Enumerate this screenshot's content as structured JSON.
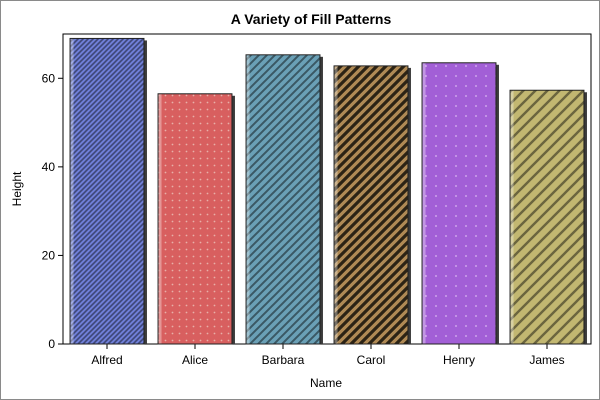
{
  "chart_data": {
    "type": "bar",
    "title": "A Variety of Fill Patterns",
    "xlabel": "Name",
    "ylabel": "Height",
    "categories": [
      "Alfred",
      "Alice",
      "Barbara",
      "Carol",
      "Henry",
      "James"
    ],
    "values": [
      69.0,
      56.5,
      65.3,
      62.8,
      63.5,
      57.3
    ],
    "ylim": [
      0,
      70
    ],
    "yticks": [
      "0",
      "20",
      "40",
      "60"
    ],
    "grid": false,
    "legend": "none",
    "bars": [
      {
        "color": "#6f7fd8",
        "pattern": "diagonal-fine"
      },
      {
        "color": "#d85f5f",
        "pattern": "dots"
      },
      {
        "color": "#6aa0b6",
        "pattern": "diagonal-medium"
      },
      {
        "color": "#b08a55",
        "pattern": "diagonal-heavy"
      },
      {
        "color": "#a25fd6",
        "pattern": "dots-sparse"
      },
      {
        "color": "#c2b771",
        "pattern": "diagonal-wide"
      }
    ]
  }
}
